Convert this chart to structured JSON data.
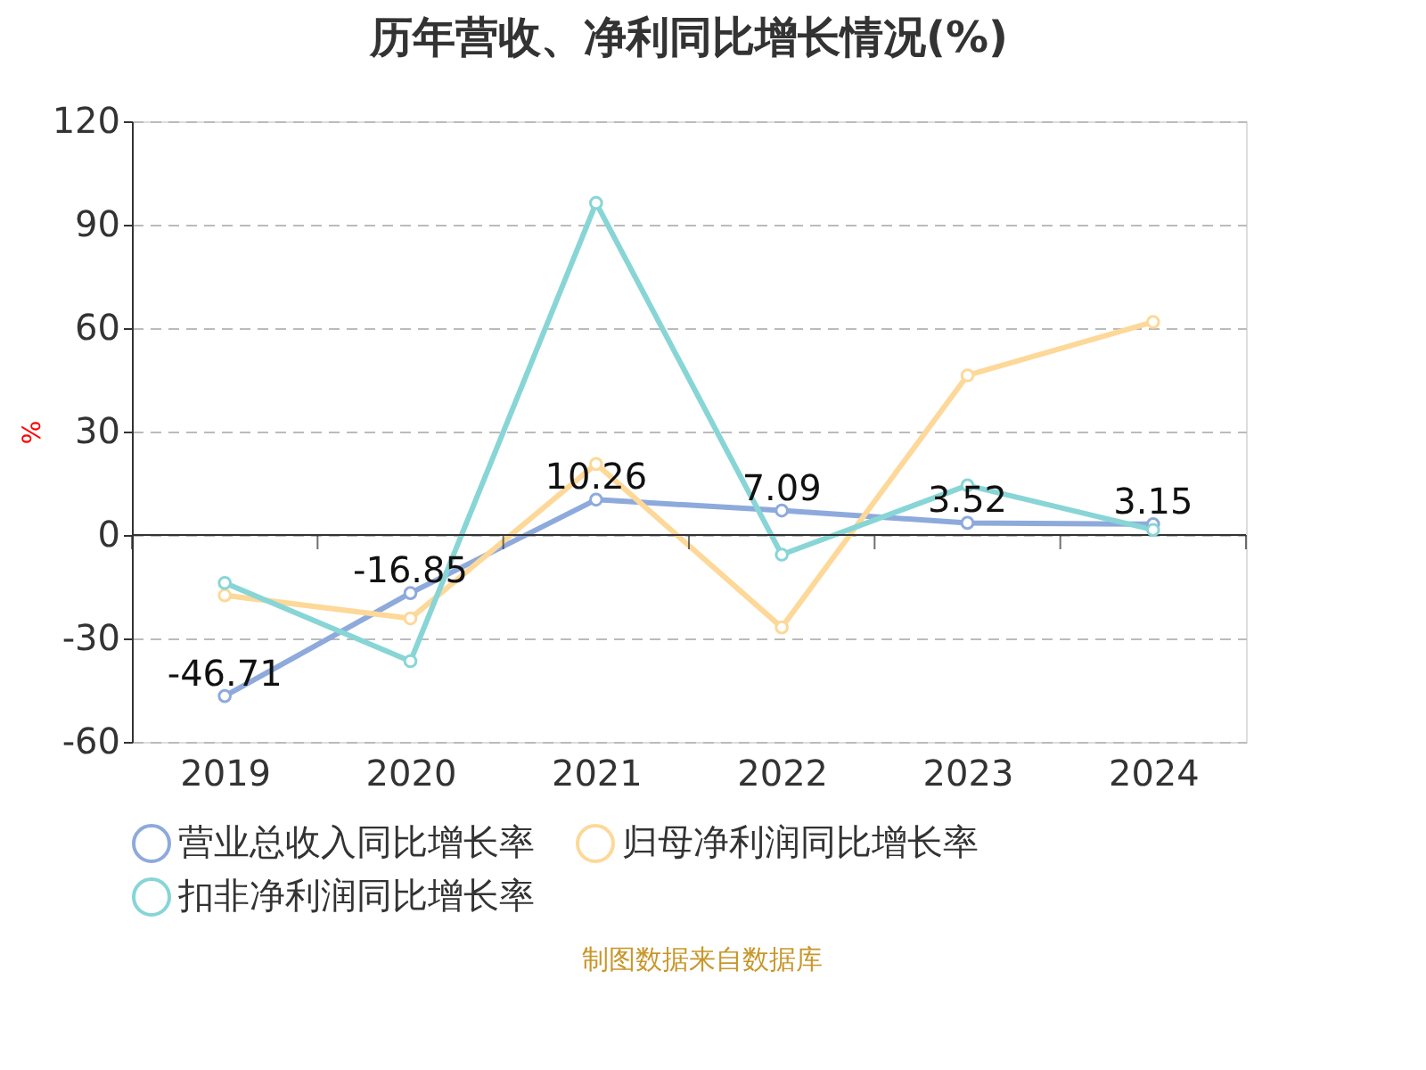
{
  "chart_data": {
    "type": "line",
    "title": "历年营收、净利同比增长情况(%)",
    "ylabel": "%",
    "categories": [
      "2019",
      "2020",
      "2021",
      "2022",
      "2023",
      "2024"
    ],
    "series": [
      {
        "name": "营业总收入同比增长率",
        "color": "#8eaadc",
        "values": [
          -46.71,
          -16.85,
          10.26,
          7.09,
          3.52,
          3.15
        ],
        "value_labels": [
          "-46.71",
          "-16.85",
          "10.26",
          "7.09",
          "3.52",
          "3.15"
        ]
      },
      {
        "name": "归母净利润同比增长率",
        "color": "#fdd898",
        "values": [
          -17.5,
          -24.2,
          20.6,
          -26.8,
          46.3,
          61.8
        ]
      },
      {
        "name": "扣非净利润同比增长率",
        "color": "#88d5d6",
        "values": [
          -13.9,
          -36.6,
          96.3,
          -5.7,
          14.4,
          1.5
        ]
      }
    ],
    "ylim": [
      -60,
      120
    ],
    "yticks": [
      -60,
      -30,
      0,
      30,
      60,
      90,
      120
    ],
    "grid": "y",
    "legend": "bottom",
    "marker": "circle",
    "line_style": "solid",
    "annotations": [
      "制图数据来自数据库"
    ]
  }
}
